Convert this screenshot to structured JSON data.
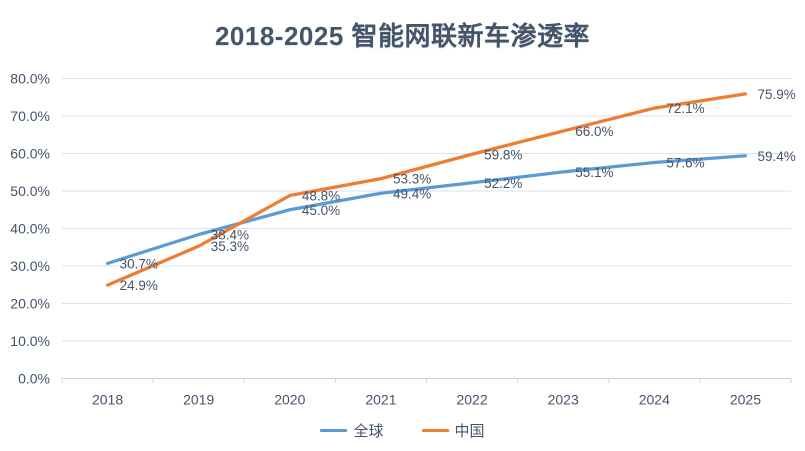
{
  "chart_data": {
    "type": "line",
    "title": "2018-2025 智能网联新车渗透率",
    "categories": [
      "2018",
      "2019",
      "2020",
      "2021",
      "2022",
      "2023",
      "2024",
      "2025"
    ],
    "series": [
      {
        "name": "全球",
        "color": "#5B9BD5",
        "values": [
          30.7,
          38.4,
          45.0,
          49.4,
          52.2,
          55.1,
          57.6,
          59.4
        ]
      },
      {
        "name": "中国",
        "color": "#ED7D31",
        "values": [
          24.9,
          35.3,
          48.8,
          53.3,
          59.8,
          66.0,
          72.1,
          75.9
        ]
      }
    ],
    "ylim": [
      0,
      80
    ],
    "ytick_step": 10,
    "ytick_labels": [
      "0.0%",
      "10.0%",
      "20.0%",
      "30.0%",
      "40.0%",
      "50.0%",
      "60.0%",
      "70.0%",
      "80.0%"
    ],
    "value_suffix": "%",
    "data_labels": true,
    "data_label_position": "right",
    "grid": "horizontal",
    "legend_position": "bottom",
    "xlabel": "",
    "ylabel": ""
  },
  "colors": {
    "text": "#44546A",
    "gridline": "#D9E1F2",
    "axis": "#CBD3E1",
    "background": "#FFFFFF"
  }
}
